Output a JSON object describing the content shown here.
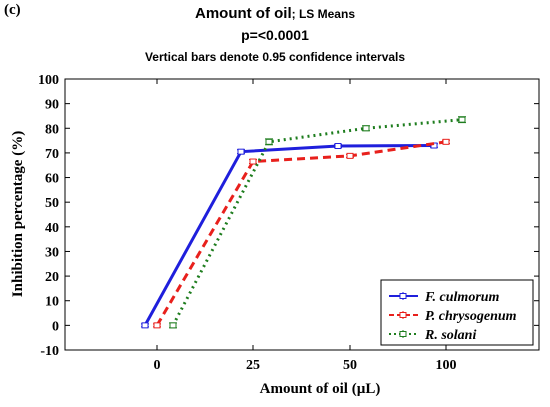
{
  "panel_label": "(c)",
  "title": {
    "main": "Amount of oil",
    "suffix": "; LS Means",
    "pvalue": "p=<0.0001",
    "note": "Vertical bars denote 0.95 confidence intervals"
  },
  "chart_data": {
    "type": "line",
    "categories": [
      "0",
      "25",
      "50",
      "100"
    ],
    "xlabel": "Amount of oil (µL)",
    "ylabel": "Inhibition percentage (%)",
    "ylim": [
      -10,
      100
    ],
    "yticks": [
      -10,
      0,
      10,
      20,
      30,
      40,
      50,
      60,
      70,
      80,
      90,
      100
    ],
    "grid": false,
    "legend_position": "bottom-right",
    "series": [
      {
        "name": "F. culmorum",
        "color": "#1f1fdc",
        "dash": "solid",
        "values": [
          0,
          70.5,
          72.8,
          73.0
        ],
        "ci": [
          0.6,
          0.8,
          0.6,
          0.7
        ]
      },
      {
        "name": "P. chrysogenum",
        "color": "#e8201c",
        "dash": "dashed",
        "values": [
          0,
          66.5,
          68.8,
          74.5
        ],
        "ci": [
          0.6,
          0.8,
          0.6,
          0.7
        ]
      },
      {
        "name": "R. solani",
        "color": "#1e7d1e",
        "dash": "dotted",
        "values": [
          0,
          74.5,
          80.0,
          83.5
        ],
        "ci": [
          1.0,
          1.2,
          1.0,
          1.2
        ]
      }
    ]
  }
}
